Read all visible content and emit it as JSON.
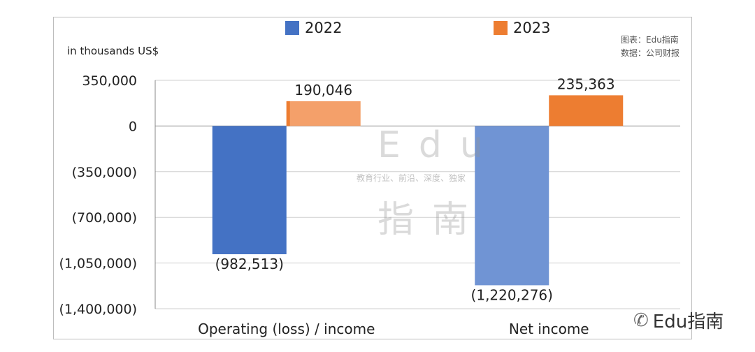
{
  "chart_data": {
    "type": "bar",
    "unit_label": "in thousands US$",
    "categories": [
      "Operating (loss) / income",
      "Net income"
    ],
    "series": [
      {
        "name": "2022",
        "values": [
          -982513,
          -1220276
        ],
        "colors": [
          "#4472C4",
          "#7094D4"
        ],
        "labels": [
          "(982,513)",
          "(1,220,276)"
        ]
      },
      {
        "name": "2023",
        "values": [
          190046,
          235363
        ],
        "colors": [
          "#F4A06A",
          "#ED7D31"
        ],
        "labels": [
          "190,046",
          "235,363"
        ]
      }
    ],
    "ylim": [
      -1400000,
      350000
    ],
    "yticks": [
      350000,
      0,
      -350000,
      -700000,
      -1050000,
      -1400000
    ],
    "ytick_labels": [
      "350,000",
      "0",
      "(350,000)",
      "(700,000)",
      "(1,050,000)",
      "(1,400,000)"
    ],
    "grid": true,
    "legend_position": "top"
  },
  "legend": {
    "item_2022": {
      "label": "2022",
      "color": "#4472C4"
    },
    "item_2023": {
      "label": "2023",
      "color": "#ED7D31"
    }
  },
  "source": {
    "chart_by": "图表：Edu指南",
    "data_from": "数据：公司财报"
  },
  "watermark": {
    "top": "Edu",
    "tagline": "教育行业、前沿、深度、独家",
    "bottom": "指南"
  },
  "brand": {
    "icon": "wechat-icon",
    "text": "Edu指南"
  }
}
